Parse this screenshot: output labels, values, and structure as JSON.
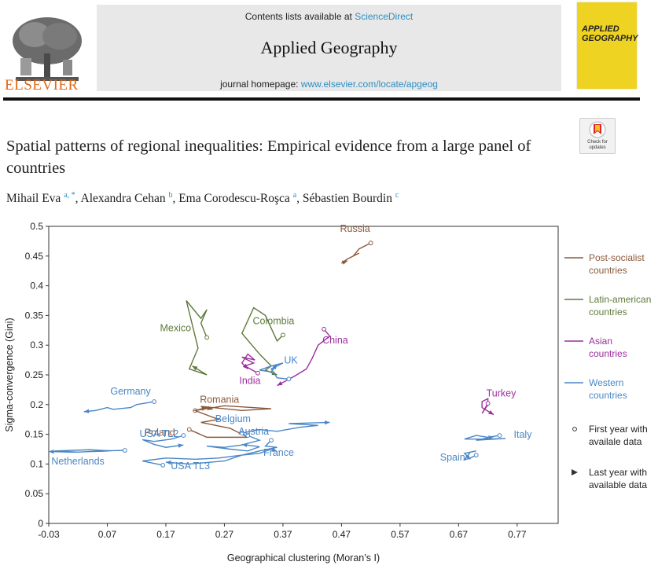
{
  "header": {
    "contents_prefix": "Contents lists available at",
    "contents_link": "ScienceDirect",
    "journal_title": "Applied Geography",
    "homepage_prefix": "journal homepage:",
    "homepage_link": "www.elsevier.com/locate/apgeog",
    "publisher": "ELSEVIER",
    "cover_line1": "APPLIED",
    "cover_line2": "GEOGRAPHY"
  },
  "badge": {
    "line1": "Check for",
    "line2": "updates"
  },
  "article": {
    "title": "Spatial patterns of regional inequalities: Empirical evidence from a large panel of countries",
    "authors": [
      {
        "name": "Mihail Eva",
        "sup": "a, *"
      },
      {
        "name": "Alexandra Cehan",
        "sup": "b"
      },
      {
        "name": "Ema Corodescu-Roşca",
        "sup": "a"
      },
      {
        "name": "Sébastien Bourdin",
        "sup": "c"
      }
    ]
  },
  "chart_data": {
    "type": "line",
    "xlabel": "Geographical clustering (Moran’s I)",
    "ylabel": "Sigma-convergence (Gini)",
    "xlim": [
      -0.03,
      0.84
    ],
    "ylim": [
      0,
      0.5
    ],
    "xticks": [
      "-0.03",
      "0.07",
      "0.17",
      "0.27",
      "0.37",
      "0.47",
      "0.57",
      "0.67",
      "0.77"
    ],
    "yticks": [
      "0",
      "0.05",
      "0.1",
      "0.15",
      "0.2",
      "0.25",
      "0.3",
      "0.35",
      "0.4",
      "0.45",
      "0.5"
    ],
    "grid": false,
    "legend_position": "right",
    "legend": [
      {
        "label": "Post-socialist countries",
        "color": "#8a5a3c"
      },
      {
        "label": "Latin-american countries",
        "color": "#5e7a3a"
      },
      {
        "label": "Asian countries",
        "color": "#9b2f9e"
      },
      {
        "label": "Western countries",
        "color": "#4a86c5"
      }
    ],
    "marker_legend": [
      {
        "label": "First year with availale data",
        "symbol": "circle"
      },
      {
        "label": "Last year with available data",
        "symbol": "arrow"
      }
    ],
    "series": [
      {
        "name": "Russia",
        "group": "Post-socialist countries",
        "color": "#8a5a3c",
        "points": [
          [
            0.52,
            0.472
          ],
          [
            0.5,
            0.462
          ],
          [
            0.49,
            0.45
          ],
          [
            0.5,
            0.455
          ],
          [
            0.48,
            0.445
          ],
          [
            0.47,
            0.438
          ],
          [
            0.48,
            0.442
          ]
        ]
      },
      {
        "name": "Romania",
        "group": "Post-socialist countries",
        "color": "#8a5a3c",
        "points": [
          [
            0.22,
            0.19
          ],
          [
            0.27,
            0.198
          ],
          [
            0.35,
            0.193
          ],
          [
            0.3,
            0.19
          ],
          [
            0.23,
            0.197
          ],
          [
            0.25,
            0.192
          ]
        ]
      },
      {
        "name": "Poland",
        "group": "Post-socialist countries",
        "color": "#8a5a3c",
        "points": [
          [
            0.21,
            0.158
          ],
          [
            0.24,
            0.145
          ],
          [
            0.31,
            0.145
          ],
          [
            0.28,
            0.16
          ],
          [
            0.23,
            0.17
          ],
          [
            0.26,
            0.175
          ],
          [
            0.22,
            0.19
          ],
          [
            0.24,
            0.195
          ]
        ]
      },
      {
        "name": "Mexico",
        "group": "Latin-american countries",
        "color": "#5e7a3a",
        "points": [
          [
            0.24,
            0.313
          ],
          [
            0.23,
            0.337
          ],
          [
            0.24,
            0.36
          ],
          [
            0.23,
            0.345
          ],
          [
            0.205,
            0.375
          ],
          [
            0.225,
            0.295
          ],
          [
            0.21,
            0.26
          ],
          [
            0.24,
            0.25
          ],
          [
            0.215,
            0.265
          ]
        ]
      },
      {
        "name": "Colombia",
        "group": "Latin-american countries",
        "color": "#5e7a3a",
        "points": [
          [
            0.37,
            0.317
          ],
          [
            0.36,
            0.307
          ],
          [
            0.34,
            0.35
          ],
          [
            0.32,
            0.363
          ],
          [
            0.3,
            0.32
          ],
          [
            0.33,
            0.285
          ],
          [
            0.35,
            0.265
          ],
          [
            0.34,
            0.258
          ],
          [
            0.36,
            0.25
          ]
        ]
      },
      {
        "name": "China",
        "group": "Asian countries",
        "color": "#9b2f9e",
        "points": [
          [
            0.44,
            0.327
          ],
          [
            0.45,
            0.315
          ],
          [
            0.43,
            0.3
          ],
          [
            0.42,
            0.278
          ],
          [
            0.41,
            0.26
          ],
          [
            0.39,
            0.248
          ],
          [
            0.36,
            0.232
          ]
        ]
      },
      {
        "name": "India",
        "group": "Asian countries",
        "color": "#9b2f9e",
        "points": [
          [
            0.327,
            0.253
          ],
          [
            0.305,
            0.265
          ],
          [
            0.32,
            0.27
          ],
          [
            0.3,
            0.28
          ],
          [
            0.322,
            0.275
          ],
          [
            0.31,
            0.285
          ],
          [
            0.3,
            0.27
          ],
          [
            0.31,
            0.26
          ]
        ]
      },
      {
        "name": "Turkey",
        "group": "Asian countries",
        "color": "#9b2f9e",
        "points": [
          [
            0.72,
            0.202
          ],
          [
            0.71,
            0.185
          ],
          [
            0.72,
            0.2
          ],
          [
            0.72,
            0.21
          ],
          [
            0.71,
            0.205
          ],
          [
            0.71,
            0.195
          ],
          [
            0.73,
            0.183
          ]
        ]
      },
      {
        "name": "UK",
        "group": "Western countries",
        "color": "#4a86c5",
        "points": [
          [
            0.38,
            0.243
          ],
          [
            0.36,
            0.245
          ],
          [
            0.35,
            0.26
          ],
          [
            0.37,
            0.27
          ],
          [
            0.35,
            0.265
          ],
          [
            0.33,
            0.258
          ],
          [
            0.35,
            0.255
          ],
          [
            0.36,
            0.268
          ]
        ]
      },
      {
        "name": "Germany",
        "group": "Western countries",
        "color": "#4a86c5",
        "points": [
          [
            0.15,
            0.205
          ],
          [
            0.12,
            0.2
          ],
          [
            0.11,
            0.195
          ],
          [
            0.08,
            0.192
          ],
          [
            0.07,
            0.195
          ],
          [
            0.05,
            0.19
          ],
          [
            0.03,
            0.188
          ]
        ]
      },
      {
        "name": "Belgium",
        "group": "Western countries",
        "color": "#4a86c5",
        "points": [
          [
            0.3,
            0.152
          ],
          [
            0.33,
            0.158
          ],
          [
            0.36,
            0.155
          ],
          [
            0.4,
            0.162
          ],
          [
            0.43,
            0.165
          ],
          [
            0.38,
            0.168
          ],
          [
            0.45,
            0.17
          ]
        ]
      },
      {
        "name": "USA TL2",
        "group": "Western countries",
        "color": "#4a86c5",
        "points": [
          [
            0.2,
            0.148
          ],
          [
            0.18,
            0.142
          ],
          [
            0.15,
            0.138
          ],
          [
            0.13,
            0.141
          ],
          [
            0.15,
            0.133
          ],
          [
            0.17,
            0.128
          ],
          [
            0.2,
            0.132
          ]
        ]
      },
      {
        "name": "Austria",
        "group": "Western countries",
        "color": "#4a86c5",
        "points": [
          [
            0.31,
            0.148
          ],
          [
            0.33,
            0.14
          ],
          [
            0.3,
            0.132
          ],
          [
            0.27,
            0.128
          ],
          [
            0.24,
            0.13
          ],
          [
            0.28,
            0.125
          ],
          [
            0.31,
            0.122
          ],
          [
            0.33,
            0.129
          ],
          [
            0.3,
            0.133
          ]
        ]
      },
      {
        "name": "France",
        "group": "Western countries",
        "color": "#4a86c5",
        "points": [
          [
            0.35,
            0.14
          ],
          [
            0.34,
            0.13
          ],
          [
            0.36,
            0.128
          ],
          [
            0.33,
            0.122
          ],
          [
            0.3,
            0.115
          ],
          [
            0.33,
            0.118
          ],
          [
            0.35,
            0.125
          ],
          [
            0.36,
            0.121
          ]
        ]
      },
      {
        "name": "USA TL3",
        "group": "Western countries",
        "color": "#4a86c5",
        "points": [
          [
            0.165,
            0.098
          ],
          [
            0.13,
            0.105
          ],
          [
            0.17,
            0.11
          ],
          [
            0.22,
            0.108
          ],
          [
            0.26,
            0.11
          ],
          [
            0.3,
            0.115
          ],
          [
            0.27,
            0.105
          ],
          [
            0.21,
            0.1
          ],
          [
            0.17,
            0.103
          ]
        ]
      },
      {
        "name": "Netherlands",
        "group": "Western countries",
        "color": "#4a86c5",
        "points": [
          [
            0.1,
            0.123
          ],
          [
            0.06,
            0.122
          ],
          [
            0.02,
            0.12
          ],
          [
            -0.02,
            0.122
          ],
          [
            0.04,
            0.124
          ],
          [
            0.08,
            0.122
          ],
          [
            0.01,
            0.12
          ],
          [
            -0.03,
            0.121
          ]
        ]
      },
      {
        "name": "Italy",
        "group": "Western countries",
        "color": "#4a86c5",
        "points": [
          [
            0.74,
            0.148
          ],
          [
            0.72,
            0.145
          ],
          [
            0.7,
            0.148
          ],
          [
            0.68,
            0.142
          ],
          [
            0.72,
            0.142
          ],
          [
            0.75,
            0.143
          ],
          [
            0.7,
            0.14
          ],
          [
            0.73,
            0.146
          ]
        ]
      },
      {
        "name": "Spain",
        "group": "Western countries",
        "color": "#4a86c5",
        "points": [
          [
            0.7,
            0.115
          ],
          [
            0.69,
            0.11
          ],
          [
            0.68,
            0.107
          ],
          [
            0.69,
            0.12
          ],
          [
            0.7,
            0.122
          ],
          [
            0.68,
            0.118
          ],
          [
            0.69,
            0.108
          ]
        ]
      }
    ]
  }
}
